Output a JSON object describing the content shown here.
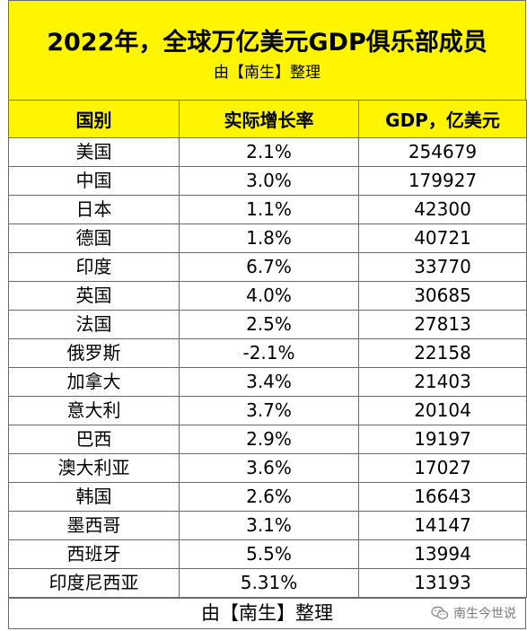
{
  "header": {
    "title": "2022年，全球万亿美元GDP俱乐部成员",
    "subtitle": "由【南生】整理"
  },
  "table": {
    "columns": [
      "国别",
      "实际增长率",
      "GDP，亿美元"
    ],
    "rows": [
      [
        "美国",
        "2.1%",
        "254679"
      ],
      [
        "中国",
        "3.0%",
        "179927"
      ],
      [
        "日本",
        "1.1%",
        "42300"
      ],
      [
        "德国",
        "1.8%",
        "40721"
      ],
      [
        "印度",
        "6.7%",
        "33770"
      ],
      [
        "英国",
        "4.0%",
        "30685"
      ],
      [
        "法国",
        "2.5%",
        "27813"
      ],
      [
        "俄罗斯",
        "-2.1%",
        "22158"
      ],
      [
        "加拿大",
        "3.4%",
        "21403"
      ],
      [
        "意大利",
        "3.7%",
        "20104"
      ],
      [
        "巴西",
        "2.9%",
        "19197"
      ],
      [
        "澳大利亚",
        "3.6%",
        "17027"
      ],
      [
        "韩国",
        "2.6%",
        "16643"
      ],
      [
        "墨西哥",
        "3.1%",
        "14147"
      ],
      [
        "西班牙",
        "5.5%",
        "13994"
      ],
      [
        "印度尼西亚",
        "5.31%",
        "13193"
      ]
    ]
  },
  "footer": {
    "text": "由【南生】整理"
  },
  "watermark": {
    "icon": "wechat-logo-icon",
    "text": "南生今世说"
  },
  "colors": {
    "header_fill": "#fff500",
    "grid_line": "#6b6b6b"
  }
}
